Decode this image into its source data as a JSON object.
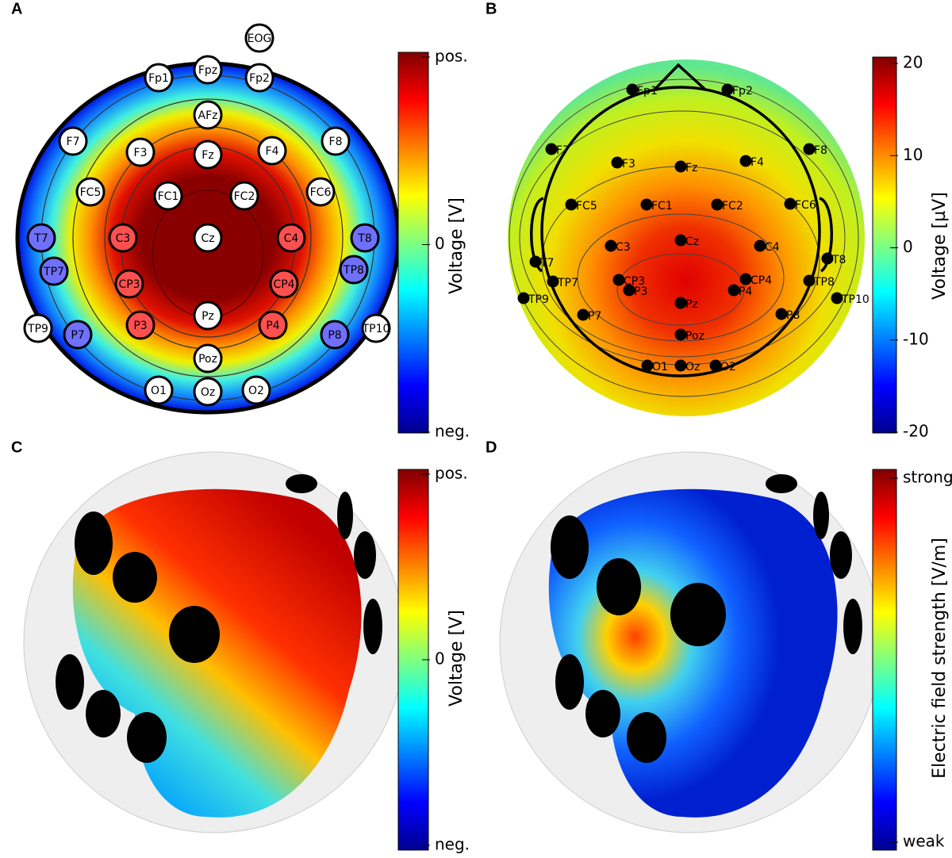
{
  "panels": [
    {
      "label": "A",
      "electrodes": [
        "EOG",
        "Fp1",
        "Fpz",
        "Fp2",
        "AFz",
        "F7",
        "F3",
        "Fz",
        "F4",
        "F8",
        "FC5",
        "FC1",
        "FC2",
        "FC6",
        "T7",
        "C3",
        "Cz",
        "C4",
        "T8",
        "TP7",
        "CP3",
        "CP4",
        "TP8",
        "TP9",
        "P7",
        "P3",
        "Pz",
        "P4",
        "P8",
        "TP10",
        "Poz",
        "O1",
        "Oz",
        "O2"
      ],
      "colorbar": {
        "title": "Voltage [V]",
        "ticks": [
          "pos.",
          "0",
          "neg."
        ]
      }
    },
    {
      "label": "B",
      "electrodes": [
        "Fp1",
        "Fp2",
        "F7",
        "F3",
        "Fz",
        "F4",
        "F8",
        "FC5",
        "FC1",
        "FC2",
        "FC6",
        "T7",
        "C3",
        "Cz",
        "C4",
        "T8",
        "CP3",
        "CP4",
        "TP7",
        "TP8",
        "P3",
        "Pz",
        "P4",
        "TP9",
        "TP10",
        "P7",
        "P8",
        "Poz",
        "O1",
        "Oz",
        "O2"
      ],
      "colorbar": {
        "title": "Voltage [µV]",
        "ticks": [
          "20",
          "10",
          "0",
          "-10",
          "-20"
        ]
      }
    },
    {
      "label": "C",
      "colorbar": {
        "title": "Voltage [V]",
        "ticks": [
          "pos.",
          "0",
          "neg."
        ]
      }
    },
    {
      "label": "D",
      "colorbar": {
        "title": "Electric field strength [V/m]",
        "ticks": [
          "strong",
          "weak"
        ]
      }
    }
  ]
}
